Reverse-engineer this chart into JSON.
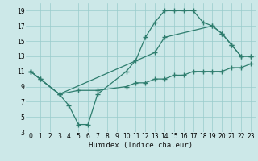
{
  "xlabel": "Humidex (Indice chaleur)",
  "bg_color": "#cce8e8",
  "grid_color": "#99cccc",
  "line_color": "#2e7d6e",
  "xlim": [
    -0.5,
    23.5
  ],
  "ylim": [
    3,
    20
  ],
  "xticks": [
    0,
    1,
    2,
    3,
    4,
    5,
    6,
    7,
    8,
    9,
    10,
    11,
    12,
    13,
    14,
    15,
    16,
    17,
    18,
    19,
    20,
    21,
    22,
    23
  ],
  "yticks": [
    3,
    5,
    7,
    9,
    11,
    13,
    15,
    17,
    19
  ],
  "line1_x": [
    0,
    1,
    3,
    4,
    5,
    6,
    7,
    10,
    11,
    12,
    13,
    14,
    15,
    16,
    17,
    18,
    19,
    20,
    21,
    22,
    23
  ],
  "line1_y": [
    11,
    10,
    8,
    6.5,
    4,
    4,
    8,
    11,
    12.5,
    15.5,
    17.5,
    19,
    19,
    19,
    19,
    17.5,
    17,
    16,
    14.5,
    13,
    13
  ],
  "line2_x": [
    0,
    3,
    13,
    14,
    19,
    20,
    21,
    22,
    23
  ],
  "line2_y": [
    11,
    8,
    13.5,
    15.5,
    17,
    16,
    14.5,
    13,
    13
  ],
  "line3_x": [
    0,
    1,
    3,
    5,
    7,
    10,
    11,
    12,
    13,
    14,
    15,
    16,
    17,
    18,
    19,
    20,
    21,
    22,
    23
  ],
  "line3_y": [
    11,
    10,
    8,
    8.5,
    8.5,
    9,
    9.5,
    9.5,
    10,
    10,
    10.5,
    10.5,
    11,
    11,
    11,
    11,
    11.5,
    11.5,
    12
  ]
}
